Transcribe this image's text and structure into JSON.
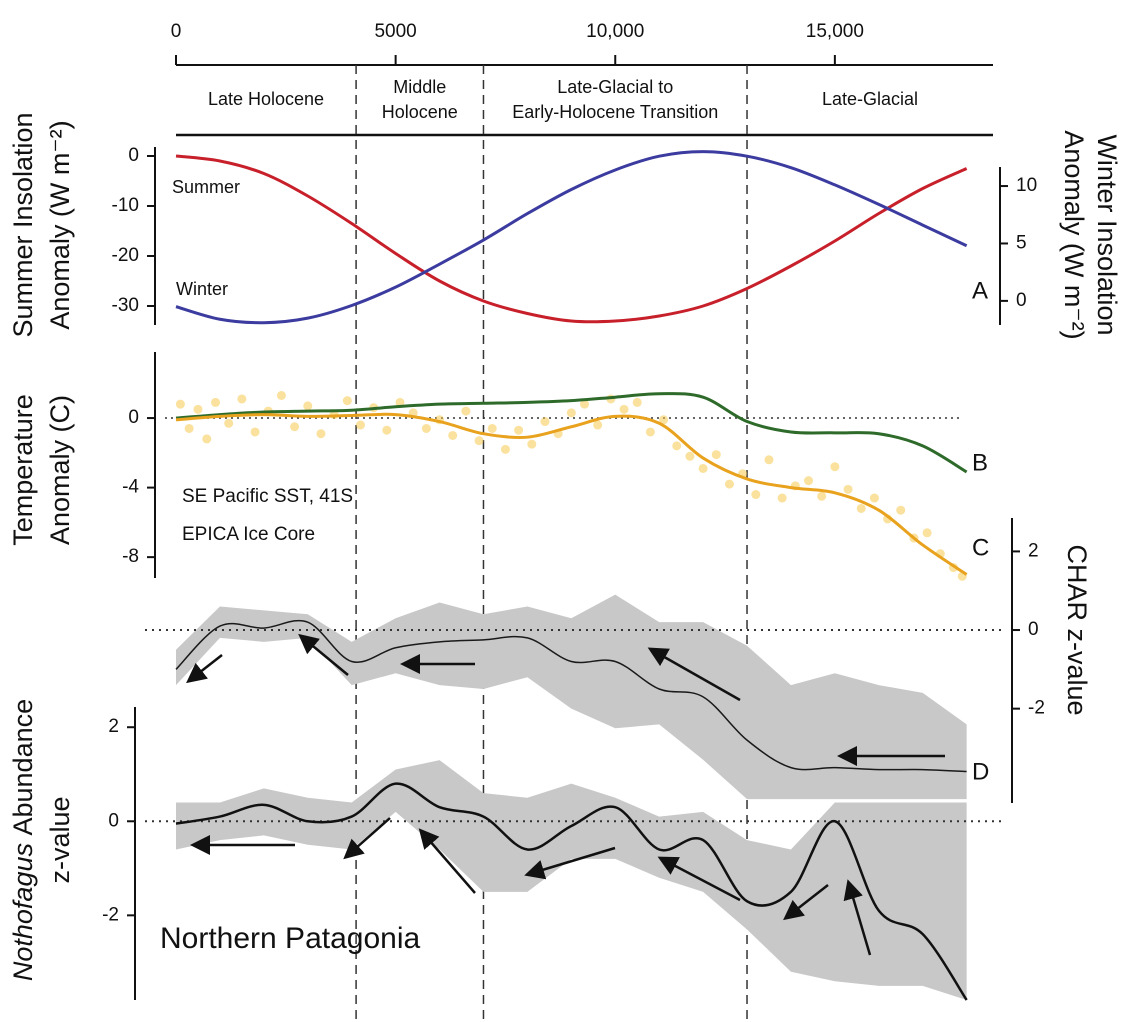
{
  "x_axis": {
    "xlim": [
      0,
      18600
    ],
    "xticks": [
      0,
      5000,
      {
        "value": 10000,
        "label": "10,000"
      },
      {
        "value": 15000,
        "label": "15,000"
      }
    ]
  },
  "periods": [
    {
      "label": [
        "Late Holocene"
      ],
      "start": 0,
      "end": 4100
    },
    {
      "label": [
        "Middle",
        "Holocene"
      ],
      "start": 4100,
      "end": 7000
    },
    {
      "label": [
        "Late-Glacial to",
        "Early-Holocene Transition"
      ],
      "start": 7000,
      "end": 13000
    },
    {
      "label": [
        "Late-Glacial"
      ],
      "start": 13000,
      "end": 18600
    }
  ],
  "chart_data": [
    {
      "type": "line",
      "panel_label": "A",
      "ylabel": [
        "Summer Insolation",
        "Anomaly  (W m⁻²)"
      ],
      "ylim": [
        -33.8,
        1.8
      ],
      "yticks": [
        0,
        -10,
        -20,
        -30
      ],
      "y2label": [
        "Winter Insolation",
        "Anomaly  (W m⁻²)"
      ],
      "y2lim": [
        -2.1,
        13.4
      ],
      "y2ticks": [
        0,
        5,
        10
      ],
      "x": [
        0,
        1000,
        2000,
        3000,
        4000,
        5000,
        6000,
        7000,
        8000,
        9000,
        10000,
        11000,
        12000,
        13000,
        14000,
        15000,
        16000,
        17000,
        18000
      ],
      "series": [
        {
          "name": "Summer",
          "color": "#c8202a",
          "values": [
            0,
            -1,
            -3.5,
            -8,
            -13.5,
            -19.5,
            -25,
            -29,
            -31.5,
            -33,
            -33,
            -32,
            -30,
            -26.5,
            -22,
            -17,
            -11.5,
            -6.5,
            -2.5
          ]
        },
        {
          "name": "Winter",
          "color": "#3b3ba0",
          "axis": "y2",
          "values": [
            -0.5,
            -1.6,
            -1.9,
            -1.5,
            -0.4,
            1.2,
            3.2,
            5.3,
            7.6,
            9.7,
            11.4,
            12.6,
            13,
            12.6,
            11.6,
            10.1,
            8.4,
            6.6,
            4.8
          ]
        }
      ]
    },
    {
      "type": "line",
      "panel_labels": [
        "B",
        "C"
      ],
      "zero_line": true,
      "ylabel": [
        "Temperature",
        "Anomaly (C)"
      ],
      "ylim": [
        -9.2,
        3.8
      ],
      "yticks": [
        0,
        -4,
        -8
      ],
      "x": [
        0,
        1000,
        2000,
        3000,
        4000,
        5000,
        6000,
        7000,
        8000,
        9000,
        10000,
        11000,
        12000,
        13000,
        14000,
        15000,
        16000,
        17000,
        18000
      ],
      "series": [
        {
          "name": "SE Pacific SST, 41S",
          "color": "#2e6b2a",
          "values": [
            0,
            0.2,
            0.35,
            0.4,
            0.45,
            0.65,
            0.8,
            0.85,
            0.9,
            1.0,
            1.2,
            1.4,
            1.2,
            -0.2,
            -0.8,
            -0.85,
            -0.9,
            -1.6,
            -3.1
          ]
        },
        {
          "name": "EPICA Ice Core",
          "color": "#e8a21e",
          "values": [
            -0.1,
            0.1,
            0.2,
            0.1,
            0.15,
            0.2,
            -0.2,
            -0.9,
            -1.1,
            -0.5,
            0.1,
            -0.3,
            -2.3,
            -3.5,
            -4.0,
            -4.3,
            -5.3,
            -7.3,
            -9.0
          ]
        }
      ],
      "scatter": {
        "color": "#f5c84c",
        "x": [
          100,
          300,
          500,
          700,
          900,
          1200,
          1500,
          1800,
          2100,
          2400,
          2700,
          3000,
          3300,
          3600,
          3900,
          4200,
          4500,
          4800,
          5100,
          5400,
          5700,
          6000,
          6300,
          6600,
          6900,
          7200,
          7500,
          7800,
          8100,
          8400,
          8700,
          9000,
          9300,
          9600,
          9900,
          10200,
          10500,
          10800,
          11100,
          11400,
          11700,
          12000,
          12300,
          12600,
          12900,
          13200,
          13500,
          13800,
          14100,
          14400,
          14700,
          15000,
          15300,
          15600,
          15900,
          16200,
          16500,
          16800,
          17100,
          17400,
          17700,
          17900
        ],
        "values": [
          0.8,
          -0.6,
          0.5,
          -1.2,
          0.9,
          -0.3,
          1.1,
          -0.8,
          0.4,
          1.3,
          -0.5,
          0.7,
          -0.9,
          0.2,
          1.0,
          -0.4,
          0.6,
          -0.7,
          0.9,
          0.3,
          -0.6,
          -0.1,
          -1.0,
          0.4,
          -1.3,
          -0.6,
          -1.8,
          -0.7,
          -1.5,
          -0.2,
          -0.9,
          0.3,
          0.8,
          -0.4,
          1.1,
          0.5,
          0.9,
          -0.8,
          -0.1,
          -1.6,
          -2.2,
          -2.9,
          -2.1,
          -3.8,
          -3.2,
          -4.4,
          -2.4,
          -4.6,
          -3.9,
          -3.6,
          -4.5,
          -2.8,
          -4.1,
          -5.2,
          -4.6,
          -5.8,
          -5.3,
          -6.9,
          -6.6,
          -7.8,
          -8.6,
          -9.1
        ]
      }
    },
    {
      "type": "band-line",
      "panel_label": "D",
      "zero_line": true,
      "axis_side": "right",
      "color": "#1a1a1a",
      "band_color": "#c8c8c8",
      "ylabel": [
        "CHAR z-value"
      ],
      "ylim": [
        -4.4,
        2.85
      ],
      "yticks": [
        2,
        0,
        -2
      ],
      "x": [
        0,
        1000,
        2000,
        3000,
        4000,
        5000,
        6000,
        7000,
        8000,
        9000,
        10000,
        11000,
        12000,
        13000,
        14000,
        15000,
        16000,
        17000,
        18000
      ],
      "values": [
        -1.0,
        0.1,
        0.05,
        0.2,
        -0.8,
        -0.45,
        -0.3,
        -0.25,
        -0.2,
        -0.8,
        -0.8,
        -1.5,
        -1.7,
        -2.8,
        -3.5,
        -3.5,
        -3.55,
        -3.55,
        -3.6
      ],
      "upper": [
        -0.5,
        0.6,
        0.5,
        0.4,
        -0.3,
        0.3,
        0.7,
        0.4,
        0.6,
        0.3,
        0.9,
        0.2,
        0.2,
        -0.4,
        -1.4,
        -1.1,
        -1.4,
        -1.6,
        -2.4
      ],
      "lower": [
        -1.4,
        -0.2,
        -0.3,
        -0.2,
        -1.4,
        -1.1,
        -1.4,
        -1.5,
        -1.2,
        -2.0,
        -2.5,
        -2.4,
        -3.3,
        -4.3,
        -4.3,
        -4.3,
        -4.3,
        -4.3,
        -4.3
      ]
    },
    {
      "type": "band-line",
      "annotation": "Northern Patagonia",
      "zero_line": true,
      "axis_side": "left",
      "color": "#111111",
      "band_color": "#c8c8c8",
      "ylabel_italic": "Nothofagus",
      "ylabel": [
        "Abundance",
        "z-value"
      ],
      "ylim": [
        -3.8,
        2.43
      ],
      "yticks": [
        2,
        0,
        -2
      ],
      "x": [
        0,
        1000,
        2000,
        3000,
        4000,
        5000,
        6000,
        7000,
        8000,
        9000,
        10000,
        11000,
        12000,
        13000,
        14000,
        15000,
        16000,
        17000,
        18000
      ],
      "values": [
        -0.05,
        0.1,
        0.35,
        0,
        0.1,
        0.8,
        0.3,
        0.1,
        -0.6,
        -0.1,
        0.3,
        -0.6,
        -0.4,
        -1.7,
        -1.5,
        0,
        -1.9,
        -2.4,
        -3.8
      ],
      "upper": [
        0.4,
        0.4,
        0.7,
        0.5,
        0.4,
        1.1,
        1.3,
        0.6,
        0.5,
        0.8,
        0.5,
        0.1,
        0.2,
        -0.4,
        -0.6,
        0.4,
        0.4,
        0.4,
        0.4
      ],
      "lower": [
        -0.6,
        -0.4,
        -0.3,
        -0.5,
        -0.6,
        0.2,
        -0.6,
        -1.5,
        -1.5,
        -0.8,
        -0.8,
        -1.2,
        -1.5,
        -2.3,
        -3.2,
        -3.4,
        -3.5,
        -3.5,
        -3.8
      ]
    }
  ]
}
